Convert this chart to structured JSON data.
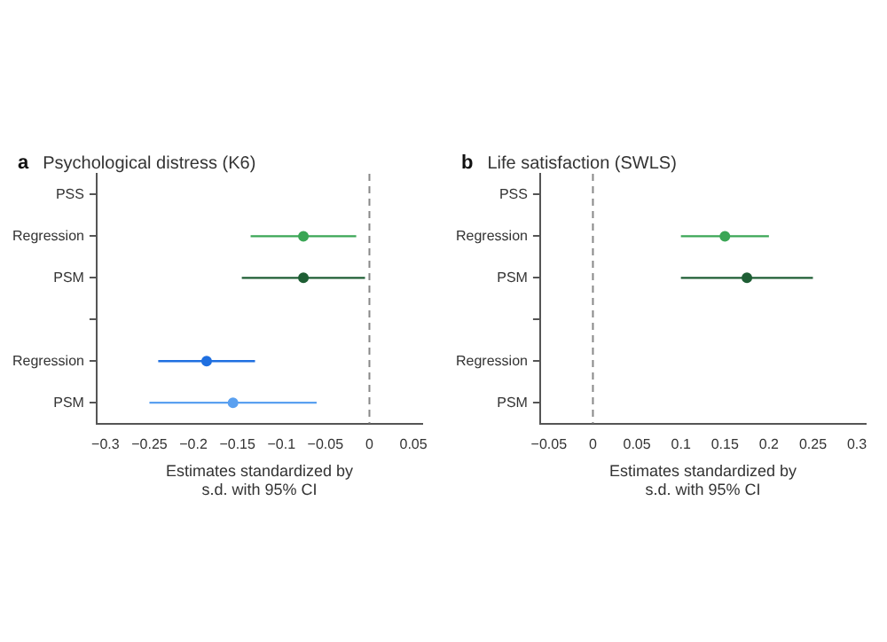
{
  "chart_data": [
    {
      "type": "scatter",
      "orientation": "horizontal",
      "title": "Psychological distress (K6)",
      "annotations": [
        "a"
      ],
      "xlabel": "Estimates standardized by\ns.d. with 95% CI",
      "categories": [
        "PSS",
        "Regression",
        "PSM",
        null,
        "Regression",
        "PSM"
      ],
      "series": [
        {
          "color": "#3aa655",
          "values": [
            null,
            -0.075,
            null,
            null,
            null,
            null
          ],
          "errors": [
            null,
            [
              -0.135,
              -0.015
            ],
            null,
            null,
            null,
            null
          ]
        },
        {
          "color": "#1e5e34",
          "values": [
            null,
            null,
            -0.075,
            null,
            null,
            null
          ],
          "errors": [
            null,
            null,
            [
              -0.145,
              -0.005
            ],
            null,
            null,
            null
          ]
        },
        {
          "color": "#1f6fe0",
          "values": [
            null,
            null,
            null,
            null,
            -0.185,
            null
          ],
          "errors": [
            null,
            null,
            null,
            null,
            [
              -0.24,
              -0.13
            ],
            null
          ]
        },
        {
          "color": "#5aa0f0",
          "values": [
            null,
            null,
            null,
            null,
            null,
            -0.155
          ],
          "errors": [
            null,
            null,
            null,
            null,
            null,
            [
              -0.25,
              -0.06
            ]
          ]
        }
      ],
      "xlim": [
        -0.31,
        0.06
      ],
      "xticks": [
        -0.3,
        -0.25,
        -0.2,
        -0.15,
        -0.1,
        -0.05,
        0,
        0.05
      ],
      "ref_lines": [
        {
          "axis": "x",
          "value": 0,
          "line_style": "dashed",
          "color": "#888888"
        }
      ],
      "grid": false,
      "legend": false,
      "marker": "circle"
    },
    {
      "type": "scatter",
      "orientation": "horizontal",
      "title": "Life satisfaction (SWLS)",
      "annotations": [
        "b"
      ],
      "xlabel": "Estimates standardized by\ns.d. with 95% CI",
      "categories": [
        "PSS",
        "Regression",
        "PSM",
        null,
        "Regression",
        "PSM"
      ],
      "series": [
        {
          "color": "#3aa655",
          "values": [
            null,
            0.15,
            null,
            null,
            null,
            null
          ],
          "errors": [
            null,
            [
              0.1,
              0.2
            ],
            null,
            null,
            null,
            null
          ]
        },
        {
          "color": "#1e5e34",
          "values": [
            null,
            null,
            0.175,
            null,
            null,
            null
          ],
          "errors": [
            null,
            null,
            [
              0.1,
              0.25
            ],
            null,
            null,
            null
          ]
        }
      ],
      "xlim": [
        -0.06,
        0.31
      ],
      "xticks": [
        -0.05,
        0,
        0.05,
        0.1,
        0.15,
        0.2,
        0.25,
        0.3
      ],
      "ref_lines": [
        {
          "axis": "x",
          "value": 0,
          "line_style": "dashed",
          "color": "#888888"
        }
      ],
      "grid": false,
      "legend": false,
      "marker": "circle"
    }
  ]
}
